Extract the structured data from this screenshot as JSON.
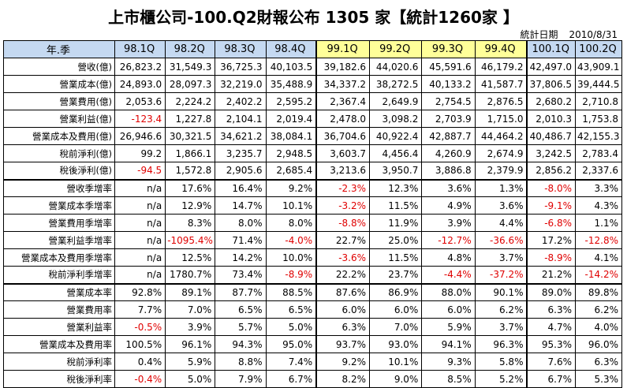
{
  "title": "上市櫃公司-100.Q2財報公布 1305 家【統計1260家 】",
  "stat_date_label": "統計日期",
  "stat_date_value": "2010/8/31",
  "header_label": "年.季",
  "quarters": [
    "98.1Q",
    "98.2Q",
    "98.3Q",
    "98.4Q",
    "99.1Q",
    "99.2Q",
    "99.3Q",
    "99.4Q",
    "100.1Q",
    "100.2Q"
  ],
  "rows": [
    {
      "label": "營收(億)",
      "values": [
        "26,823.2",
        "31,549.3",
        "36,725.3",
        "40,103.5",
        "39,182.6",
        "44,020.6",
        "45,591.6",
        "46,179.2",
        "42,497.0",
        "43,909.1"
      ]
    },
    {
      "label": "營業成本(億)",
      "values": [
        "24,893.0",
        "28,097.3",
        "32,219.0",
        "35,488.9",
        "34,337.2",
        "38,272.5",
        "40,133.2",
        "41,587.7",
        "37,806.5",
        "39,444.5"
      ]
    },
    {
      "label": "營業費用(億)",
      "values": [
        "2,053.6",
        "2,224.2",
        "2,402.2",
        "2,595.2",
        "2,367.4",
        "2,649.9",
        "2,754.5",
        "2,876.5",
        "2,680.2",
        "2,710.8"
      ]
    },
    {
      "label": "營業利益(億)",
      "values": [
        "-123.4",
        "1,227.8",
        "2,104.1",
        "2,019.4",
        "2,478.0",
        "3,098.2",
        "2,703.9",
        "1,715.0",
        "2,010.3",
        "1,753.8"
      ]
    },
    {
      "label": "營業成本及費用(億)",
      "values": [
        "26,946.6",
        "30,321.5",
        "34,621.2",
        "38,084.1",
        "36,704.6",
        "40,922.4",
        "42,887.7",
        "44,464.2",
        "40,486.7",
        "42,155.3"
      ]
    },
    {
      "label": "稅前淨利(億)",
      "values": [
        "99.2",
        "1,866.1",
        "3,235.7",
        "2,948.5",
        "3,603.7",
        "4,456.4",
        "4,260.9",
        "2,674.9",
        "3,242.5",
        "2,783.4"
      ]
    },
    {
      "label": "稅後淨利(億)",
      "values": [
        "-94.5",
        "1,572.8",
        "2,905.6",
        "2,685.4",
        "3,213.6",
        "3,950.7",
        "3,886.8",
        "2,379.9",
        "2,856.2",
        "2,337.6"
      ]
    },
    {
      "label": "營收季增率",
      "values": [
        "n/a",
        "17.6%",
        "16.4%",
        "9.2%",
        "-2.3%",
        "12.3%",
        "3.6%",
        "1.3%",
        "-8.0%",
        "3.3%"
      ]
    },
    {
      "label": "營業成本季增率",
      "values": [
        "n/a",
        "12.9%",
        "14.7%",
        "10.1%",
        "-3.2%",
        "11.5%",
        "4.9%",
        "3.6%",
        "-9.1%",
        "4.3%"
      ]
    },
    {
      "label": "營業費用季增率",
      "values": [
        "n/a",
        "8.3%",
        "8.0%",
        "8.0%",
        "-8.8%",
        "11.9%",
        "3.9%",
        "4.4%",
        "-6.8%",
        "1.1%"
      ]
    },
    {
      "label": "營業利益季增率",
      "values": [
        "n/a",
        "-1095.4%",
        "71.4%",
        "-4.0%",
        "22.7%",
        "25.0%",
        "-12.7%",
        "-36.6%",
        "17.2%",
        "-12.8%"
      ]
    },
    {
      "label": "營業成本及費用季增率",
      "values": [
        "n/a",
        "12.5%",
        "14.2%",
        "10.0%",
        "-3.6%",
        "11.5%",
        "4.8%",
        "3.7%",
        "-8.9%",
        "4.1%"
      ]
    },
    {
      "label": "稅前淨利季增率",
      "values": [
        "n/a",
        "1780.7%",
        "73.4%",
        "-8.9%",
        "22.2%",
        "23.7%",
        "-4.4%",
        "-37.2%",
        "21.2%",
        "-14.2%"
      ]
    },
    {
      "label": "營業成本率",
      "values": [
        "92.8%",
        "89.1%",
        "87.7%",
        "88.5%",
        "87.6%",
        "86.9%",
        "88.0%",
        "90.1%",
        "89.0%",
        "89.8%"
      ]
    },
    {
      "label": "營業費用率",
      "values": [
        "7.7%",
        "7.0%",
        "6.5%",
        "6.5%",
        "6.0%",
        "6.0%",
        "6.0%",
        "6.2%",
        "6.3%",
        "6.2%"
      ]
    },
    {
      "label": "營業利益率",
      "values": [
        "-0.5%",
        "3.9%",
        "5.7%",
        "5.0%",
        "6.3%",
        "7.0%",
        "5.9%",
        "3.7%",
        "4.7%",
        "4.0%"
      ]
    },
    {
      "label": "營業成本及費用率",
      "values": [
        "100.5%",
        "96.1%",
        "94.3%",
        "95.0%",
        "93.7%",
        "93.0%",
        "94.1%",
        "96.3%",
        "95.3%",
        "96.0%"
      ]
    },
    {
      "label": "稅前淨利率",
      "values": [
        "0.4%",
        "5.9%",
        "8.8%",
        "7.4%",
        "9.2%",
        "10.1%",
        "9.3%",
        "5.8%",
        "7.6%",
        "6.3%"
      ]
    },
    {
      "label": "稅後淨利率",
      "values": [
        "-0.4%",
        "5.0%",
        "7.9%",
        "6.7%",
        "8.2%",
        "9.0%",
        "8.5%",
        "5.2%",
        "6.7%",
        "5.3%"
      ]
    }
  ]
}
